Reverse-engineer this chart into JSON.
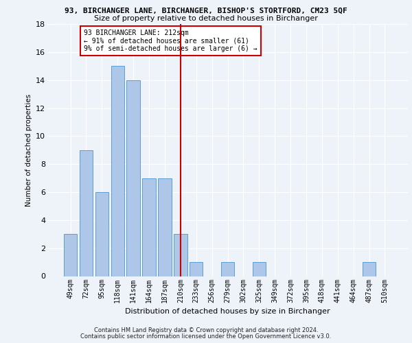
{
  "title": "93, BIRCHANGER LANE, BIRCHANGER, BISHOP'S STORTFORD, CM23 5QF",
  "subtitle": "Size of property relative to detached houses in Birchanger",
  "xlabel": "Distribution of detached houses by size in Birchanger",
  "ylabel": "Number of detached properties",
  "categories": [
    "49sqm",
    "72sqm",
    "95sqm",
    "118sqm",
    "141sqm",
    "164sqm",
    "187sqm",
    "210sqm",
    "233sqm",
    "256sqm",
    "279sqm",
    "302sqm",
    "325sqm",
    "349sqm",
    "372sqm",
    "395sqm",
    "418sqm",
    "441sqm",
    "464sqm",
    "487sqm",
    "510sqm"
  ],
  "values": [
    3,
    9,
    6,
    15,
    14,
    7,
    7,
    3,
    1,
    0,
    1,
    0,
    1,
    0,
    0,
    0,
    0,
    0,
    0,
    1,
    0
  ],
  "bar_color": "#aec6e8",
  "bar_edge_color": "#5a9fd4",
  "vline_x": 7,
  "vline_color": "#cc0000",
  "annotation_text": "93 BIRCHANGER LANE: 212sqm\n← 91% of detached houses are smaller (61)\n9% of semi-detached houses are larger (6) →",
  "annotation_box_color": "#cc0000",
  "ylim": [
    0,
    18
  ],
  "yticks": [
    0,
    2,
    4,
    6,
    8,
    10,
    12,
    14,
    16,
    18
  ],
  "background_color": "#eef2f9",
  "grid_color": "#ffffff",
  "footer1": "Contains HM Land Registry data © Crown copyright and database right 2024.",
  "footer2": "Contains public sector information licensed under the Open Government Licence v3.0."
}
